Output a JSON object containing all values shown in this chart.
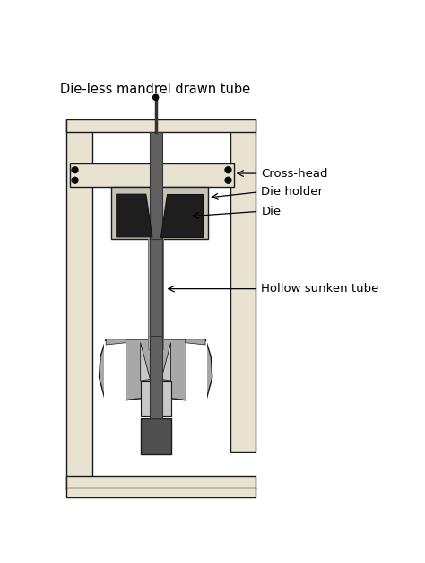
{
  "title": "Die-less mandrel drawn tube",
  "labels": {
    "cross_head": "Cross-head",
    "die_holder": "Die holder",
    "die": "Die",
    "hollow_sunken_tube": "Hollow sunken tube"
  },
  "colors": {
    "background": "#ffffff",
    "frame_fill": "#e8e3d0",
    "frame_stroke": "#1a1a1a",
    "crosshead_fill": "#e8e3d0",
    "die_holder_fill": "#c8c4b4",
    "die_fill": "#1e1e1e",
    "tube_dark": "#606060",
    "tube_light": "#b8b8b8",
    "clamp_outer": "#a8a8a8",
    "clamp_inner": "#c8c8c8",
    "clamp_white": "#f0f0f0",
    "clamp_dark": "#505050",
    "bolt": "#0a0a0a"
  },
  "fig_width": 4.74,
  "fig_height": 6.27,
  "dpi": 100
}
